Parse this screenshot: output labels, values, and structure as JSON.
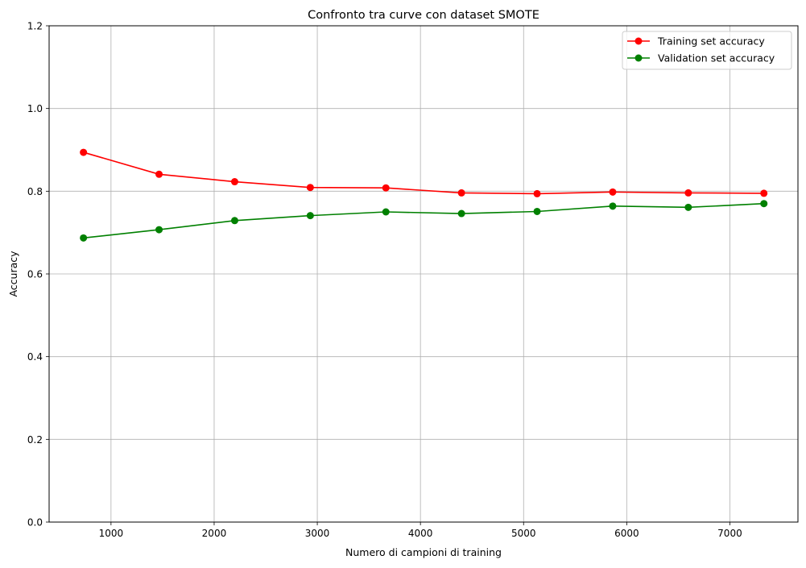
{
  "chart_data": {
    "type": "line",
    "title": "Confronto tra curve con dataset SMOTE",
    "xlabel": "Numero di campioni di training",
    "ylabel": "Accuracy",
    "xlim": [
      400,
      7660
    ],
    "ylim": [
      0.0,
      1.2
    ],
    "xticks": [
      1000,
      2000,
      3000,
      4000,
      5000,
      6000,
      7000
    ],
    "xtick_labels": [
      "1000",
      "2000",
      "3000",
      "4000",
      "5000",
      "6000",
      "7000"
    ],
    "yticks": [
      0.0,
      0.2,
      0.4,
      0.6,
      0.8,
      1.0,
      1.2
    ],
    "ytick_labels": [
      "0.0",
      "0.2",
      "0.4",
      "0.6",
      "0.8",
      "1.0",
      "1.2"
    ],
    "grid": true,
    "legend_position": "top-right",
    "x": [
      733,
      1466,
      2199,
      2932,
      3665,
      4398,
      5131,
      5864,
      6597,
      7330
    ],
    "series": [
      {
        "name": "Training set accuracy",
        "color": "#ff0000",
        "marker": "circle",
        "values": [
          0.894,
          0.841,
          0.823,
          0.809,
          0.808,
          0.796,
          0.794,
          0.798,
          0.796,
          0.795
        ]
      },
      {
        "name": "Validation set accuracy",
        "color": "#008000",
        "marker": "circle",
        "values": [
          0.687,
          0.707,
          0.729,
          0.741,
          0.75,
          0.746,
          0.751,
          0.764,
          0.761,
          0.77
        ]
      }
    ]
  }
}
